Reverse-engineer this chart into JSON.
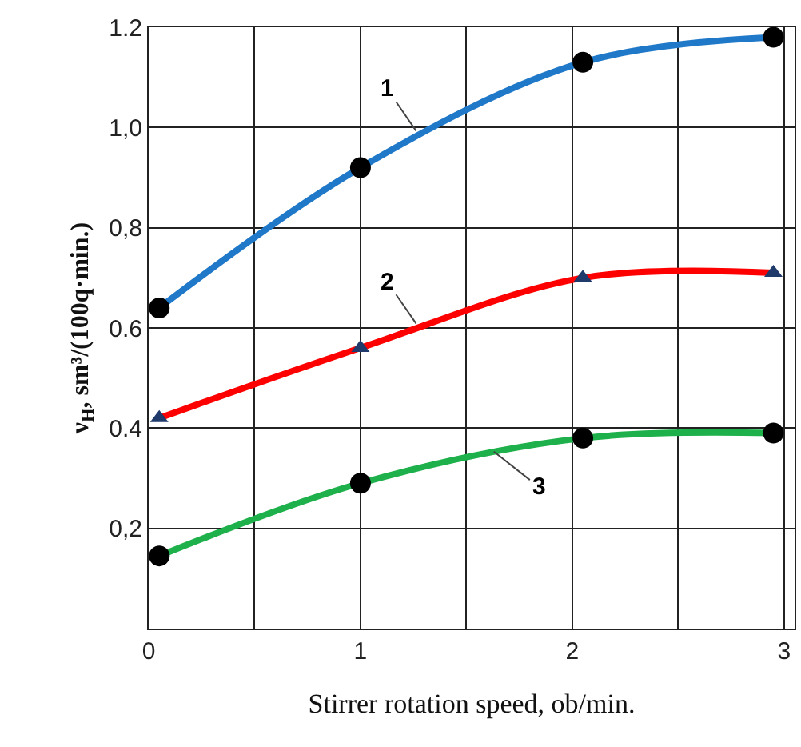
{
  "chart_data": {
    "type": "line",
    "xlabel": "Stirrer rotation speed, ob/min.",
    "ylabel": "ν$_{H}$, sm³/(100q·min.)",
    "xlim": [
      0,
      3.05
    ],
    "xticks": [
      0,
      {
        "value": 0.5,
        "label": null
      },
      1,
      {
        "value": 1.5,
        "label": null
      },
      2,
      {
        "value": 2.5,
        "label": null
      },
      3
    ],
    "ylim": [
      0,
      1.2
    ],
    "yticks": [
      {
        "value": 0.2,
        "label": "0,2"
      },
      {
        "value": 0.4,
        "label": "0.4"
      },
      {
        "value": 0.6,
        "label": "0.6"
      },
      {
        "value": 0.8,
        "label": "0,8"
      },
      {
        "value": 1.0,
        "label": "1,0"
      },
      {
        "value": 1.2,
        "label": "1.2"
      }
    ],
    "grid": true,
    "series": [
      {
        "name": "1",
        "color": "#1f78c8",
        "marker": "circle",
        "x": [
          0.05,
          1.0,
          2.05,
          2.95
        ],
        "values": [
          0.64,
          0.92,
          1.13,
          1.18
        ]
      },
      {
        "name": "2",
        "color": "#ff0000",
        "marker": "triangle",
        "x": [
          0.05,
          1.0,
          2.05,
          2.95
        ],
        "values": [
          0.42,
          0.56,
          0.7,
          0.71
        ]
      },
      {
        "name": "3",
        "color": "#1db04b",
        "marker": "circle",
        "x": [
          0.05,
          1.0,
          2.05,
          2.95
        ],
        "values": [
          0.145,
          0.29,
          0.38,
          0.39
        ]
      }
    ]
  }
}
